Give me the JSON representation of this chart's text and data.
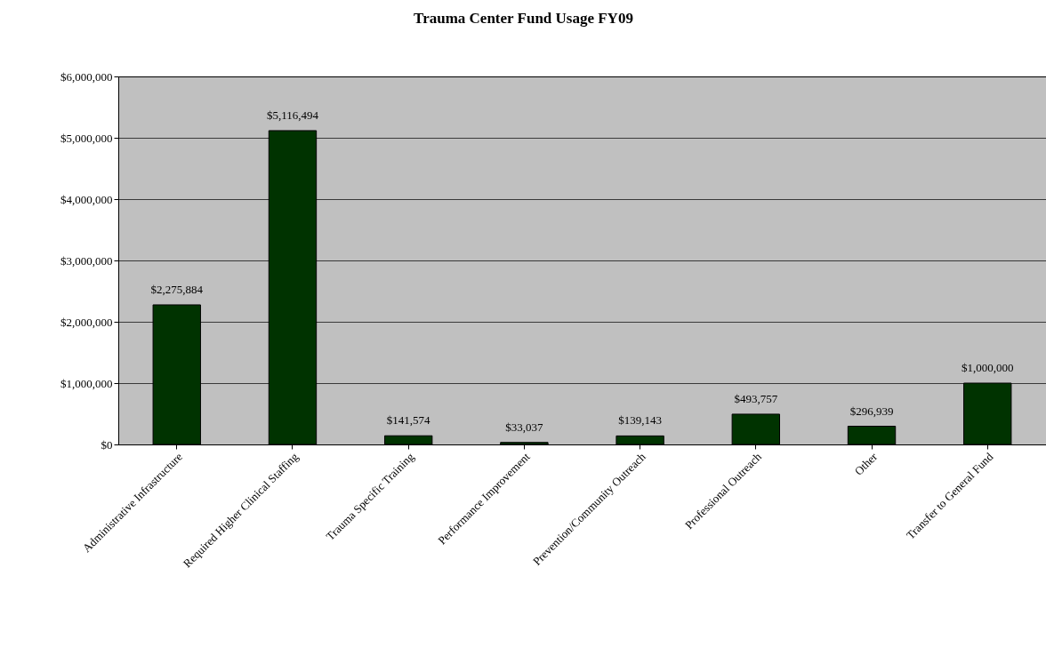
{
  "chart_data": {
    "type": "bar",
    "title": "Trauma Center Fund Usage FY09",
    "categories": [
      "Administrative Infrastructure",
      "Required Higher Clinical Staffing",
      "Trauma Specific Training",
      "Performance Improvement",
      "Prevention/Community Outreach",
      "Professional Outreach",
      "Other",
      "Transfer to General Fund"
    ],
    "values": [
      2275884,
      5116494,
      141574,
      33037,
      139143,
      493757,
      296939,
      1000000
    ],
    "value_labels": [
      "$2,275,884",
      "$5,116,494",
      "$141,574",
      "$33,037",
      "$139,143",
      "$493,757",
      "$296,939",
      "$1,000,000"
    ],
    "color": "#003300",
    "ylim": [
      0,
      6000000
    ],
    "yticks": [
      {
        "value": 0,
        "label": "$0"
      },
      {
        "value": 1000000,
        "label": "$1,000,000"
      },
      {
        "value": 2000000,
        "label": "$2,000,000"
      },
      {
        "value": 3000000,
        "label": "$3,000,000"
      },
      {
        "value": 4000000,
        "label": "$4,000,000"
      },
      {
        "value": 5000000,
        "label": "$5,000,000"
      },
      {
        "value": 6000000,
        "label": "$6,000,000"
      }
    ],
    "grid": "y"
  }
}
